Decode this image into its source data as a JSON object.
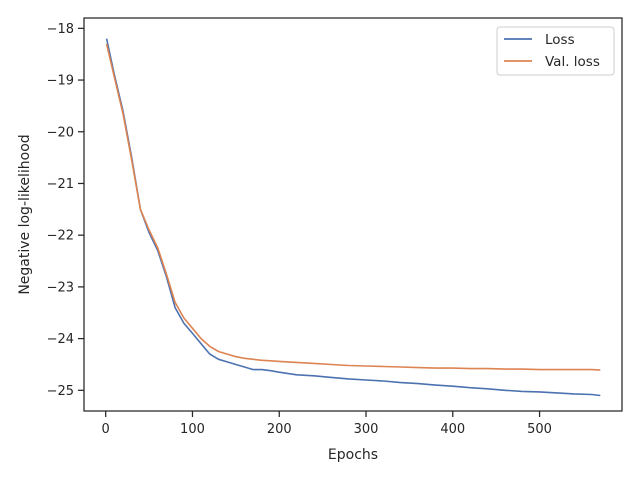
{
  "chart_data": {
    "type": "line",
    "title": "",
    "xlabel": "Epochs",
    "ylabel": "Negative log-likelihood",
    "xlim": [
      -25,
      595
    ],
    "ylim": [
      -25.4,
      -17.8
    ],
    "xticks": [
      0,
      100,
      200,
      300,
      400,
      500
    ],
    "yticks": [
      -25,
      -24,
      -23,
      -22,
      -21,
      -20,
      -19,
      -18
    ],
    "xtick_labels": [
      "0",
      "100",
      "200",
      "300",
      "400",
      "500"
    ],
    "ytick_labels": [
      "−25",
      "−24",
      "−23",
      "−22",
      "−21",
      "−20",
      "−19",
      "−18"
    ],
    "grid": false,
    "legend_position": "top-right",
    "series": [
      {
        "name": "Loss",
        "color": "#4c72b0",
        "x": [
          1,
          10,
          20,
          30,
          40,
          50,
          60,
          70,
          80,
          90,
          100,
          110,
          120,
          130,
          140,
          150,
          160,
          170,
          180,
          190,
          200,
          220,
          240,
          260,
          280,
          300,
          320,
          340,
          360,
          380,
          400,
          420,
          440,
          460,
          480,
          500,
          520,
          540,
          560,
          570
        ],
        "values": [
          -18.2,
          -18.9,
          -19.6,
          -20.5,
          -21.5,
          -21.95,
          -22.3,
          -22.8,
          -23.4,
          -23.7,
          -23.9,
          -24.1,
          -24.3,
          -24.4,
          -24.45,
          -24.5,
          -24.55,
          -24.6,
          -24.6,
          -24.62,
          -24.65,
          -24.7,
          -24.72,
          -24.75,
          -24.78,
          -24.8,
          -24.82,
          -24.85,
          -24.87,
          -24.9,
          -24.92,
          -24.95,
          -24.97,
          -25.0,
          -25.02,
          -25.03,
          -25.05,
          -25.07,
          -25.08,
          -25.1
        ]
      },
      {
        "name": "Val. loss",
        "color": "#dd8452",
        "x": [
          1,
          10,
          20,
          30,
          40,
          50,
          60,
          70,
          80,
          90,
          100,
          110,
          120,
          130,
          140,
          150,
          160,
          170,
          180,
          190,
          200,
          220,
          240,
          260,
          280,
          300,
          320,
          340,
          360,
          380,
          400,
          420,
          440,
          460,
          480,
          500,
          520,
          540,
          560,
          570
        ],
        "values": [
          -18.3,
          -18.95,
          -19.65,
          -20.55,
          -21.5,
          -21.9,
          -22.25,
          -22.75,
          -23.3,
          -23.6,
          -23.8,
          -24.0,
          -24.15,
          -24.25,
          -24.3,
          -24.35,
          -24.38,
          -24.4,
          -24.42,
          -24.43,
          -24.44,
          -24.46,
          -24.48,
          -24.5,
          -24.52,
          -24.53,
          -24.54,
          -24.55,
          -24.56,
          -24.57,
          -24.57,
          -24.58,
          -24.58,
          -24.59,
          -24.59,
          -24.6,
          -24.6,
          -24.6,
          -24.6,
          -24.61
        ]
      }
    ]
  }
}
